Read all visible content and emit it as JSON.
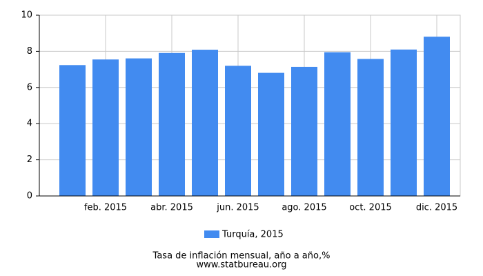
{
  "chart_data": {
    "type": "bar",
    "categories": [
      null,
      "feb. 2015",
      null,
      "abr. 2015",
      null,
      "jun. 2015",
      null,
      "ago. 2015",
      null,
      "oct. 2015",
      null,
      "dic. 2015"
    ],
    "series": [
      {
        "name": "Turquía, 2015",
        "color": "#428bf0",
        "values": [
          7.24,
          7.55,
          7.61,
          7.91,
          8.09,
          7.2,
          6.81,
          7.14,
          7.95,
          7.58,
          8.1,
          8.81
        ]
      }
    ],
    "ylim": [
      0,
      10
    ],
    "yticks": [
      0,
      2,
      4,
      6,
      8,
      10
    ],
    "grid": true,
    "title": "Tasa de inflación mensual, año a año,%",
    "subtitle": "www.statbureau.org"
  }
}
